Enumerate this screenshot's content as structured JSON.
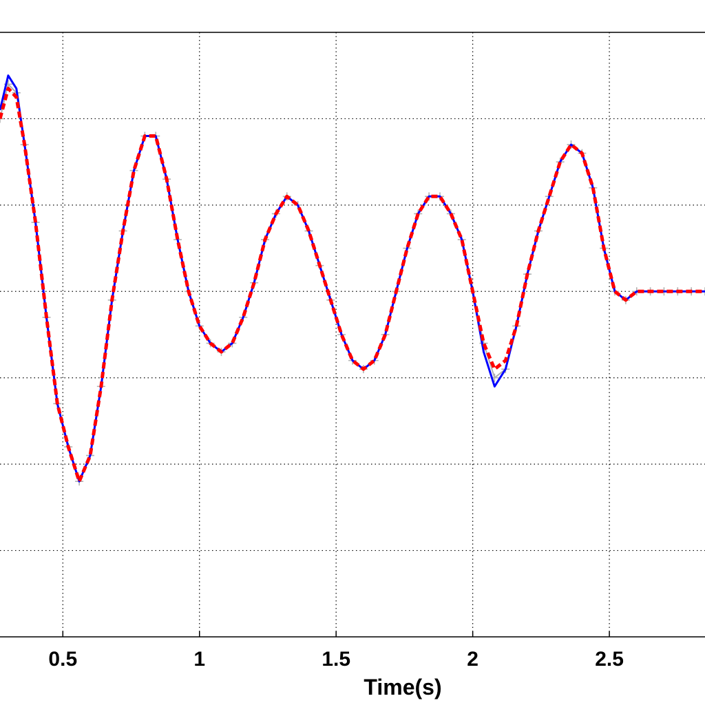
{
  "chart_data": {
    "type": "line",
    "title": "",
    "xlabel": "Time(s)",
    "ylabel": "",
    "xlim": [
      0.27,
      2.85
    ],
    "ylim": [
      -4,
      3
    ],
    "x_ticks": [
      0.5,
      1,
      1.5,
      2,
      2.5
    ],
    "x_tick_labels": [
      "0.5",
      "1",
      "1.5",
      "2",
      "2.5"
    ],
    "y_grid": [
      -3,
      -2,
      -1,
      0,
      1,
      2
    ],
    "grid": true,
    "legend": "none",
    "series": [
      {
        "color": "#b0b0b0",
        "marker": "plus",
        "x": [
          0.27,
          0.3,
          0.33,
          0.36,
          0.4,
          0.44,
          0.48,
          0.52,
          0.56,
          0.6,
          0.64,
          0.68,
          0.72,
          0.76,
          0.8,
          0.84,
          0.88,
          0.92,
          0.96,
          1.0,
          1.04,
          1.08,
          1.12,
          1.16,
          1.2,
          1.24,
          1.28,
          1.32,
          1.36,
          1.4,
          1.44,
          1.48,
          1.52,
          1.56,
          1.6,
          1.64,
          1.68,
          1.72,
          1.76,
          1.8,
          1.84,
          1.88,
          1.92,
          1.96,
          2.0,
          2.04,
          2.08,
          2.12,
          2.16,
          2.2,
          2.24,
          2.28,
          2.32,
          2.36,
          2.4,
          2.44,
          2.48,
          2.52,
          2.56,
          2.6,
          2.65,
          2.7,
          2.75,
          2.8,
          2.85
        ],
        "y": [
          2.0,
          2.4,
          2.3,
          1.7,
          0.8,
          -0.3,
          -1.3,
          -1.8,
          -2.2,
          -1.9,
          -1.1,
          -0.1,
          0.7,
          1.4,
          1.8,
          1.8,
          1.3,
          0.6,
          0.0,
          -0.4,
          -0.6,
          -0.7,
          -0.6,
          -0.3,
          0.1,
          0.6,
          0.9,
          1.1,
          1.0,
          0.7,
          0.3,
          -0.1,
          -0.5,
          -0.8,
          -0.9,
          -0.8,
          -0.5,
          0.0,
          0.5,
          0.9,
          1.1,
          1.1,
          0.9,
          0.6,
          0.0,
          -0.6,
          -1.0,
          -0.9,
          -0.4,
          0.2,
          0.7,
          1.1,
          1.5,
          1.7,
          1.6,
          1.2,
          0.5,
          0.0,
          -0.1,
          0.0,
          0.0,
          0.0,
          0.0,
          0.0,
          0.0
        ]
      },
      {
        "color": "#0000ff",
        "marker": "line",
        "x": [
          0.27,
          0.3,
          0.33,
          0.36,
          0.4,
          0.44,
          0.48,
          0.52,
          0.56,
          0.6,
          0.64,
          0.68,
          0.72,
          0.76,
          0.8,
          0.84,
          0.88,
          0.92,
          0.96,
          1.0,
          1.04,
          1.08,
          1.12,
          1.16,
          1.2,
          1.24,
          1.28,
          1.32,
          1.36,
          1.4,
          1.44,
          1.48,
          1.52,
          1.56,
          1.6,
          1.64,
          1.68,
          1.72,
          1.76,
          1.8,
          1.84,
          1.88,
          1.92,
          1.96,
          2.0,
          2.04,
          2.08,
          2.12,
          2.16,
          2.2,
          2.24,
          2.28,
          2.32,
          2.36,
          2.4,
          2.44,
          2.48,
          2.52,
          2.56,
          2.6,
          2.65,
          2.7,
          2.75,
          2.8,
          2.85
        ],
        "y": [
          2.1,
          2.5,
          2.35,
          1.7,
          0.8,
          -0.3,
          -1.3,
          -1.8,
          -2.2,
          -1.9,
          -1.1,
          -0.1,
          0.7,
          1.4,
          1.8,
          1.8,
          1.3,
          0.6,
          0.0,
          -0.4,
          -0.6,
          -0.7,
          -0.6,
          -0.3,
          0.1,
          0.6,
          0.9,
          1.1,
          1.0,
          0.7,
          0.3,
          -0.1,
          -0.5,
          -0.8,
          -0.9,
          -0.8,
          -0.5,
          0.0,
          0.5,
          0.9,
          1.1,
          1.1,
          0.9,
          0.6,
          0.0,
          -0.7,
          -1.1,
          -0.9,
          -0.4,
          0.2,
          0.7,
          1.1,
          1.5,
          1.7,
          1.6,
          1.2,
          0.5,
          0.0,
          -0.1,
          0.0,
          0.0,
          0.0,
          0.0,
          0.0,
          0.0
        ]
      },
      {
        "color": "#ff0000",
        "marker": "dashed",
        "x": [
          0.27,
          0.3,
          0.33,
          0.36,
          0.4,
          0.44,
          0.48,
          0.52,
          0.56,
          0.6,
          0.64,
          0.68,
          0.72,
          0.76,
          0.8,
          0.84,
          0.88,
          0.92,
          0.96,
          1.0,
          1.04,
          1.08,
          1.12,
          1.16,
          1.2,
          1.24,
          1.28,
          1.32,
          1.36,
          1.4,
          1.44,
          1.48,
          1.52,
          1.56,
          1.6,
          1.64,
          1.68,
          1.72,
          1.76,
          1.8,
          1.84,
          1.88,
          1.92,
          1.96,
          2.0,
          2.04,
          2.08,
          2.12,
          2.16,
          2.2,
          2.24,
          2.28,
          2.32,
          2.36,
          2.4,
          2.44,
          2.48,
          2.52,
          2.56,
          2.6,
          2.65,
          2.7,
          2.75,
          2.8,
          2.85
        ],
        "y": [
          2.0,
          2.35,
          2.25,
          1.7,
          0.8,
          -0.3,
          -1.3,
          -1.8,
          -2.2,
          -1.9,
          -1.1,
          -0.1,
          0.7,
          1.4,
          1.8,
          1.8,
          1.3,
          0.6,
          0.0,
          -0.4,
          -0.6,
          -0.7,
          -0.6,
          -0.3,
          0.1,
          0.6,
          0.9,
          1.1,
          1.0,
          0.7,
          0.3,
          -0.1,
          -0.5,
          -0.8,
          -0.9,
          -0.8,
          -0.5,
          0.0,
          0.5,
          0.9,
          1.1,
          1.1,
          0.9,
          0.6,
          0.0,
          -0.6,
          -0.9,
          -0.8,
          -0.4,
          0.2,
          0.7,
          1.1,
          1.5,
          1.7,
          1.6,
          1.2,
          0.5,
          0.0,
          -0.1,
          0.0,
          0.0,
          0.0,
          0.0,
          0.0,
          0.0
        ]
      }
    ]
  }
}
